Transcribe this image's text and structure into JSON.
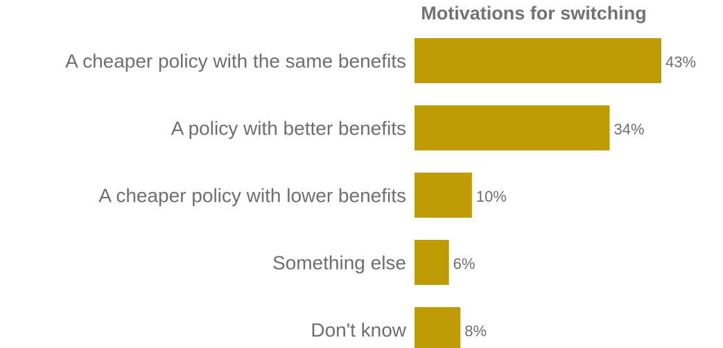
{
  "chart_data": {
    "type": "bar",
    "orientation": "horizontal",
    "title": "Motivations for switching",
    "categories": [
      "A cheaper policy with the same benefits",
      "A policy with better benefits",
      "A cheaper policy with lower benefits",
      "Something else",
      "Don't know"
    ],
    "values": [
      43,
      34,
      10,
      6,
      8
    ],
    "value_labels": [
      "43%",
      "34%",
      "10%",
      "6%",
      "8%"
    ],
    "unit": "%",
    "xlim": [
      0,
      43
    ],
    "grid": false,
    "legend": "none",
    "bar_color": "#BF9B06"
  }
}
